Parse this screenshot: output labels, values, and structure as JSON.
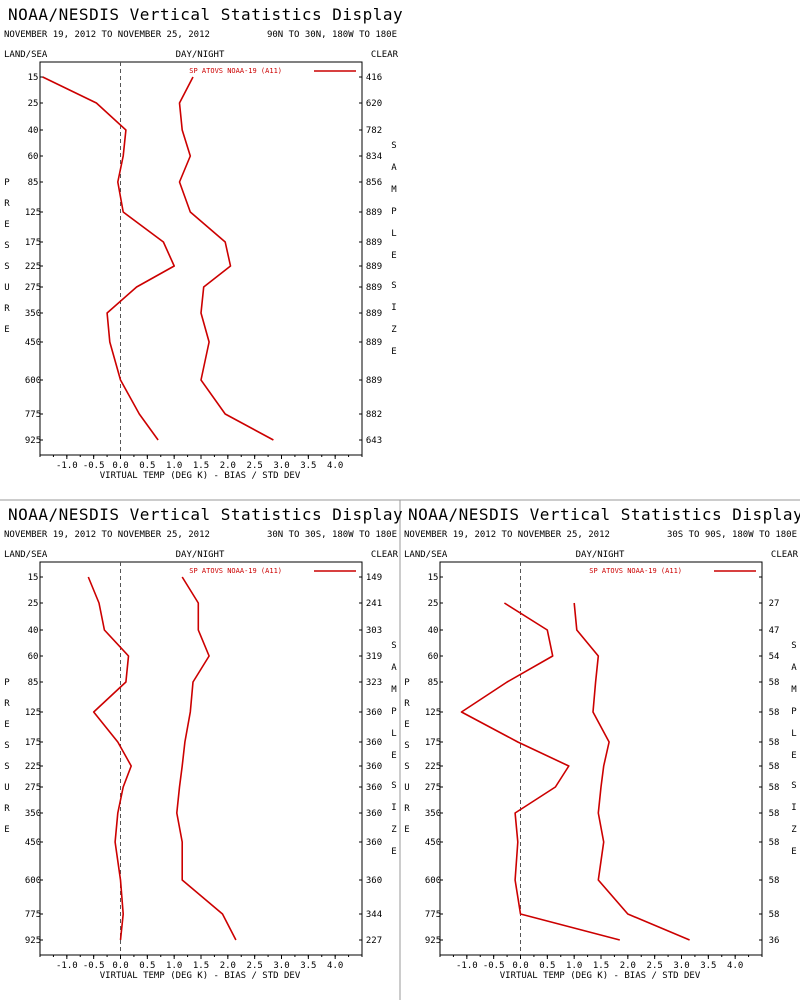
{
  "chart_data": [
    {
      "type": "line",
      "title": "NOAA/NESDIS Vertical Statistics Display",
      "date_range": "NOVEMBER 19, 2012 TO NOVEMBER 25, 2012",
      "region": "90N TO 30N, 180W TO 180E",
      "corner_left": "LAND/SEA",
      "corner_center": "DAY/NIGHT",
      "corner_right": "CLEAR",
      "xlabel": "VIRTUAL TEMP (DEG K) - BIAS / STD DEV",
      "ylabel": "PRESSURE",
      "y2label": "SAMPLE SIZE",
      "xlim": [
        -1.5,
        4.5
      ],
      "xticks": [
        "-1.0",
        "-0.5",
        "0.0",
        "0.5",
        "1.0",
        "1.5",
        "2.0",
        "2.5",
        "3.0",
        "3.5",
        "4.0"
      ],
      "legend": "SP ATOVS NOAA-19 (A11)",
      "legend_position": "top-right",
      "pressure_levels": [
        "15",
        "25",
        "40",
        "60",
        "85",
        "125",
        "175",
        "225",
        "275",
        "350",
        "450",
        "600",
        "775",
        "925"
      ],
      "sample_size": [
        "416",
        "620",
        "782",
        "834",
        "856",
        "889",
        "889",
        "889",
        "889",
        "889",
        "889",
        "889",
        "882",
        "643"
      ],
      "series": [
        {
          "name": "bias",
          "values": [
            -1.45,
            -0.45,
            0.1,
            0.05,
            -0.05,
            0.05,
            0.8,
            1.0,
            0.3,
            -0.25,
            -0.2,
            0.0,
            0.35,
            0.7
          ]
        },
        {
          "name": "std dev",
          "values": [
            1.35,
            1.1,
            1.15,
            1.3,
            1.1,
            1.3,
            1.95,
            2.05,
            1.55,
            1.5,
            1.65,
            1.5,
            1.95,
            2.85
          ]
        }
      ],
      "line_color": "#cc0000"
    },
    {
      "type": "line",
      "title": "NOAA/NESDIS Vertical Statistics Display",
      "date_range": "NOVEMBER 19, 2012 TO NOVEMBER 25, 2012",
      "region": "30N TO 30S, 180W TO 180E",
      "corner_left": "LAND/SEA",
      "corner_center": "DAY/NIGHT",
      "corner_right": "CLEAR",
      "xlabel": "VIRTUAL TEMP (DEG K) - BIAS / STD DEV",
      "ylabel": "PRESSURE",
      "y2label": "SAMPLE SIZE",
      "xlim": [
        -1.5,
        4.5
      ],
      "xticks": [
        "-1.0",
        "-0.5",
        "0.0",
        "0.5",
        "1.0",
        "1.5",
        "2.0",
        "2.5",
        "3.0",
        "3.5",
        "4.0"
      ],
      "legend": "SP ATOVS NOAA-19 (A11)",
      "legend_position": "top-right",
      "pressure_levels": [
        "15",
        "25",
        "40",
        "60",
        "85",
        "125",
        "175",
        "225",
        "275",
        "350",
        "450",
        "600",
        "775",
        "925"
      ],
      "sample_size": [
        "149",
        "241",
        "303",
        "319",
        "323",
        "360",
        "360",
        "360",
        "360",
        "360",
        "360",
        "360",
        "344",
        "227"
      ],
      "series": [
        {
          "name": "bias",
          "values": [
            -0.6,
            -0.4,
            -0.3,
            0.15,
            0.1,
            -0.5,
            -0.05,
            0.2,
            0.05,
            -0.05,
            -0.1,
            0.0,
            0.05,
            0.0
          ]
        },
        {
          "name": "std dev",
          "values": [
            1.15,
            1.45,
            1.45,
            1.65,
            1.35,
            1.3,
            1.2,
            1.15,
            1.1,
            1.05,
            1.15,
            1.15,
            1.9,
            2.15
          ]
        }
      ],
      "line_color": "#cc0000"
    },
    {
      "type": "line",
      "title": "NOAA/NESDIS Vertical Statistics Display",
      "date_range": "NOVEMBER 19, 2012 TO NOVEMBER 25, 2012",
      "region": "30S TO 90S, 180W TO 180E",
      "corner_left": "LAND/SEA",
      "corner_center": "DAY/NIGHT",
      "corner_right": "CLEAR",
      "xlabel": "VIRTUAL TEMP (DEG K) - BIAS / STD DEV",
      "ylabel": "PRESSURE",
      "y2label": "SAMPLE SIZE",
      "xlim": [
        -1.5,
        4.5
      ],
      "xticks": [
        "-1.0",
        "-0.5",
        "0.0",
        "0.5",
        "1.0",
        "1.5",
        "2.0",
        "2.5",
        "3.0",
        "3.5",
        "4.0"
      ],
      "legend": "SP ATOVS NOAA-19 (A11)",
      "legend_position": "top-right",
      "pressure_levels": [
        "15",
        "25",
        "40",
        "60",
        "85",
        "125",
        "175",
        "225",
        "275",
        "350",
        "450",
        "600",
        "775",
        "925"
      ],
      "sample_size": [
        "",
        "27",
        "47",
        "54",
        "58",
        "58",
        "58",
        "58",
        "58",
        "58",
        "58",
        "58",
        "58",
        "36"
      ],
      "series": [
        {
          "name": "bias",
          "values": [
            null,
            -0.3,
            0.5,
            0.6,
            -0.25,
            -1.1,
            -0.05,
            0.9,
            0.65,
            -0.1,
            -0.05,
            -0.1,
            0.0,
            1.85
          ]
        },
        {
          "name": "std dev",
          "values": [
            null,
            1.0,
            1.05,
            1.45,
            1.4,
            1.35,
            1.65,
            1.55,
            1.5,
            1.45,
            1.55,
            1.45,
            2.0,
            3.15
          ]
        }
      ],
      "line_color": "#cc0000"
    }
  ]
}
